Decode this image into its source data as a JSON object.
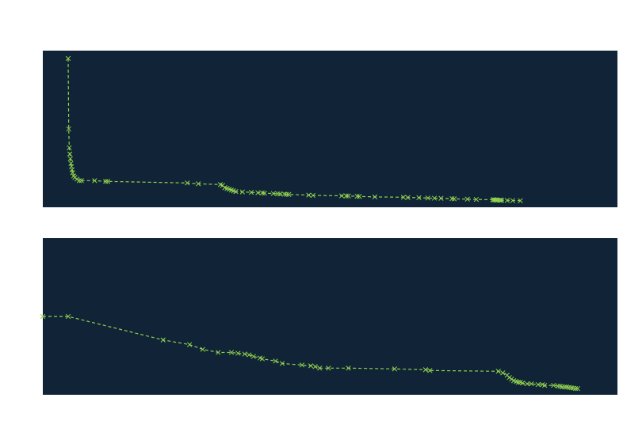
{
  "figure": {
    "background": "#ffffff"
  },
  "chart_data": [
    {
      "type": "line",
      "title": "",
      "xlabel": "",
      "ylabel": "",
      "grid": false,
      "legend": "none",
      "axes_visible": false,
      "plot_background": "#112336",
      "line_color": "#8fd14f",
      "line_style": "dashed",
      "marker": "x",
      "xlim": [
        -23,
        498
      ],
      "ylim": [
        0,
        100
      ],
      "x": [
        0,
        0.5,
        1,
        1.5,
        2,
        2.5,
        3,
        3.5,
        4,
        5,
        6,
        8,
        10,
        12,
        24,
        34,
        36,
        108,
        118,
        138,
        140,
        142,
        144,
        146,
        148,
        150,
        152,
        158,
        166,
        172,
        176,
        178,
        186,
        190,
        192,
        196,
        198,
        200,
        218,
        222,
        248,
        252,
        254,
        262,
        264,
        278,
        304,
        308,
        318,
        326,
        332,
        338,
        348,
        350,
        362,
        370,
        385,
        386,
        387,
        388,
        389,
        391,
        392,
        393,
        398,
        403,
        410
      ],
      "y": [
        95,
        50,
        38,
        34,
        31,
        28,
        26,
        24,
        22,
        20,
        19,
        18,
        17,
        17,
        17,
        16.5,
        16.5,
        15.5,
        15,
        14.5,
        14,
        12.5,
        12,
        11.5,
        11,
        10.5,
        10,
        9.8,
        9.5,
        9.3,
        9.2,
        9,
        8.8,
        8.6,
        8.5,
        8.4,
        8.3,
        8.2,
        7.8,
        7.6,
        7.3,
        7.2,
        7.2,
        7.0,
        6.9,
        6.6,
        6.4,
        6.2,
        6.1,
        5.9,
        5.8,
        5.7,
        5.5,
        5.4,
        5.2,
        5.0,
        4.8,
        4.8,
        4.7,
        4.7,
        4.6,
        4.6,
        4.5,
        4.5,
        4.4,
        4.3,
        4.2
      ]
    },
    {
      "type": "line",
      "title": "",
      "xlabel": "",
      "ylabel": "",
      "grid": false,
      "legend": "none",
      "axes_visible": false,
      "plot_background": "#112336",
      "line_color": "#8fd14f",
      "line_style": "dashed",
      "marker": "x",
      "xlim": [
        -23,
        498
      ],
      "ylim": [
        0,
        100
      ],
      "x": [
        -23,
        0,
        86,
        110,
        122,
        136,
        148,
        154,
        160,
        164,
        168,
        174,
        176,
        188,
        194,
        212,
        220,
        224,
        228,
        236,
        254,
        296,
        324,
        328,
        390,
        394,
        398,
        400,
        402,
        404,
        406,
        408,
        410,
        412,
        416,
        420,
        426,
        430,
        432,
        440,
        444,
        446,
        448,
        450,
        452,
        454,
        456,
        458,
        460,
        462
      ],
      "y": [
        50,
        50,
        35,
        32,
        29,
        27,
        27,
        26.5,
        26,
        25.5,
        24.5,
        23.5,
        23,
        21.5,
        20,
        19,
        18.5,
        18,
        17,
        17,
        17,
        16.5,
        16,
        15.5,
        15,
        14,
        12.5,
        11,
        10,
        9,
        8.5,
        8,
        8,
        7.5,
        7,
        7,
        6.5,
        6.5,
        6,
        6,
        5.5,
        5.5,
        5,
        5,
        5,
        4.7,
        4.5,
        4.3,
        4,
        4
      ]
    }
  ]
}
